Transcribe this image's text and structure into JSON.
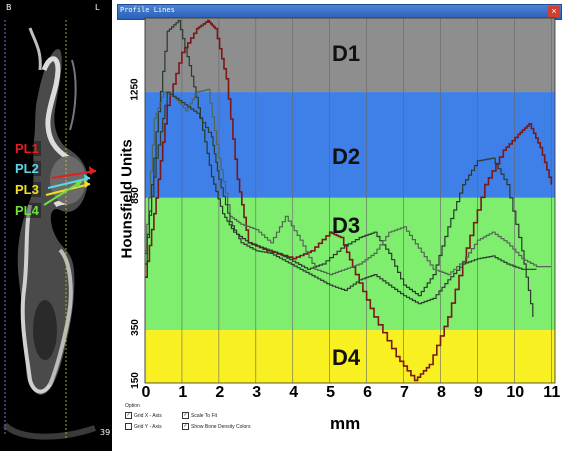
{
  "ct": {
    "corner_left": "B",
    "corner_right": "L",
    "slice_number": "39",
    "labels": [
      {
        "text": "PL1",
        "color": "#e02020"
      },
      {
        "text": "PL2",
        "color": "#5ad8e8"
      },
      {
        "text": "PL3",
        "color": "#f0e020"
      },
      {
        "text": "PL4",
        "color": "#6ee040"
      }
    ]
  },
  "window": {
    "title": "Profile Lines"
  },
  "options": {
    "heading": "Option",
    "grid_x": {
      "label": "Grid X - Axis",
      "checked": true
    },
    "grid_y": {
      "label": "Grid Y - Axis",
      "checked": false
    },
    "scale_to_fit": {
      "label": "Scale To Fit",
      "checked": true
    },
    "show_colors": {
      "label": "Show Bone Density Colors",
      "checked": true
    }
  },
  "chart_data": {
    "type": "line",
    "ylabel": "Hounsfield Units",
    "xlabel": "mm",
    "xlim": [
      0,
      11.1
    ],
    "ylim": [
      150,
      1530
    ],
    "x_ticks": [
      "0",
      "1",
      "2",
      "3",
      "4",
      "5",
      "6",
      "7",
      "8",
      "9",
      "10",
      "11"
    ],
    "y_ticks": [
      {
        "value": 150,
        "label": "150"
      },
      {
        "value": 350,
        "label": "350"
      },
      {
        "value": 850,
        "label": "850"
      },
      {
        "value": 1250,
        "label": "1250"
      }
    ],
    "grid_x": true,
    "bands": [
      {
        "label": "D1",
        "from": 1250,
        "to": 1530,
        "color": "#8e8e8e"
      },
      {
        "label": "D2",
        "from": 850,
        "to": 1250,
        "color": "#3f7fe8"
      },
      {
        "label": "D3",
        "from": 350,
        "to": 850,
        "color": "#7fee6e"
      },
      {
        "label": "D4",
        "from": 150,
        "to": 350,
        "color": "#f8f020"
      }
    ],
    "series": [
      {
        "color": "#7a1818",
        "x": [
          0,
          0.3,
          0.6,
          1.0,
          1.4,
          1.7,
          1.9,
          2.2,
          2.5,
          2.8,
          3.3,
          4.0,
          4.5,
          5.0,
          5.3,
          5.7,
          6.2,
          6.8,
          7.3,
          7.7,
          8.2,
          8.7,
          9.2,
          9.7,
          10.1,
          10.4,
          10.7,
          11.0
        ],
        "y": [
          550,
          850,
          1200,
          1400,
          1490,
          1520,
          1490,
          1300,
          920,
          680,
          650,
          620,
          650,
          720,
          700,
          560,
          400,
          250,
          160,
          220,
          400,
          660,
          900,
          1030,
          1090,
          1130,
          1040,
          900
        ]
      },
      {
        "color": "#2a3a2a",
        "x": [
          0,
          0.3,
          0.6,
          0.9,
          1.2,
          1.5,
          1.8,
          2.1,
          2.4,
          2.8,
          3.2,
          3.6,
          4.0,
          4.4,
          4.8,
          5.3,
          5.8,
          6.2,
          6.6,
          7.0,
          7.4,
          7.8,
          8.2,
          8.6,
          9.0,
          9.4,
          9.8,
          10.2,
          10.5
        ],
        "y": [
          600,
          1100,
          1480,
          1520,
          1350,
          1150,
          930,
          790,
          720,
          680,
          660,
          640,
          610,
          580,
          600,
          660,
          700,
          720,
          640,
          520,
          480,
          560,
          740,
          900,
          990,
          1000,
          900,
          650,
          400
        ]
      },
      {
        "color": "#556655",
        "x": [
          0,
          0.25,
          0.5,
          0.8,
          1.1,
          1.4,
          1.7,
          2.0,
          2.3,
          2.6,
          3.0,
          3.4,
          3.8,
          4.2,
          4.6,
          5.0,
          5.4,
          5.8,
          6.2,
          6.6,
          7.0,
          7.4,
          7.8,
          8.2,
          8.6,
          9.0,
          9.4,
          9.8,
          10.2,
          10.6,
          11.0
        ],
        "y": [
          650,
          1150,
          1250,
          1230,
          1180,
          1250,
          1260,
          1000,
          780,
          750,
          730,
          680,
          780,
          690,
          580,
          560,
          580,
          600,
          640,
          720,
          740,
          660,
          580,
          560,
          610,
          690,
          720,
          680,
          620,
          590,
          590
        ]
      },
      {
        "color": "#2e3e2e",
        "x": [
          0,
          0.3,
          0.6,
          1.0,
          1.4,
          1.8,
          2.0,
          2.3,
          2.6,
          3.0,
          3.4,
          3.8,
          4.2,
          4.6,
          5.0,
          5.4,
          5.8,
          6.2,
          6.6,
          7.0,
          7.4,
          7.8,
          8.2,
          8.6,
          9.0,
          9.4,
          9.8,
          10.2,
          10.6
        ],
        "y": [
          640,
          1000,
          1250,
          1210,
          1170,
          1080,
          920,
          760,
          680,
          650,
          640,
          610,
          580,
          550,
          520,
          500,
          540,
          560,
          520,
          480,
          450,
          470,
          540,
          600,
          620,
          630,
          600,
          580,
          580
        ]
      }
    ]
  }
}
